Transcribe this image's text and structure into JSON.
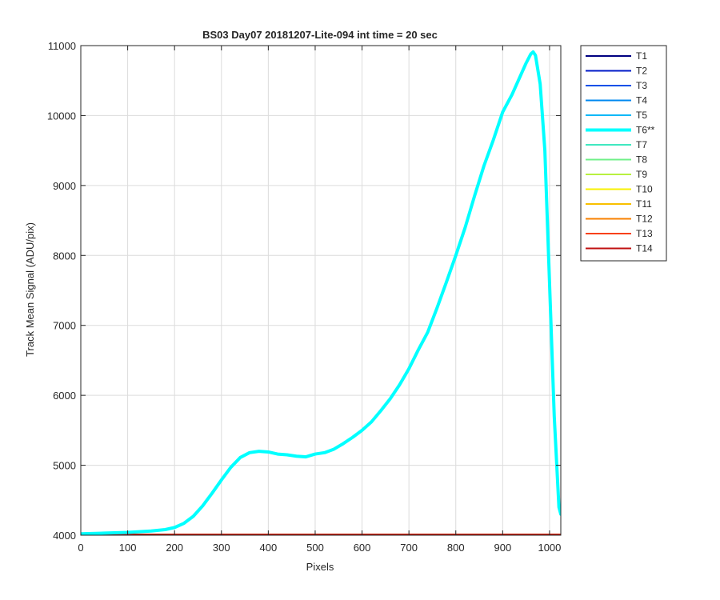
{
  "chart_data": {
    "type": "line",
    "title": "BS03 Day07 20181207-Lite-094 int time = 20 sec",
    "xlabel": "Pixels",
    "ylabel": "Track Mean Signal (ADU/pix)",
    "xlim": [
      0,
      1024
    ],
    "ylim": [
      4000,
      11000
    ],
    "xticks": [
      0,
      100,
      200,
      300,
      400,
      500,
      600,
      700,
      800,
      900,
      1000
    ],
    "yticks": [
      4000,
      5000,
      6000,
      7000,
      8000,
      9000,
      10000,
      11000
    ],
    "grid": true,
    "legend_position": "outside-right",
    "series": [
      {
        "name": "T1",
        "color": "#000080",
        "width": 1.5,
        "x": [
          0,
          1024
        ],
        "y": [
          4012,
          4012
        ]
      },
      {
        "name": "T2",
        "color": "#0018c8",
        "width": 1.5,
        "x": [
          0,
          1024
        ],
        "y": [
          4012,
          4012
        ]
      },
      {
        "name": "T3",
        "color": "#0050e8",
        "width": 1.5,
        "x": [
          0,
          1024
        ],
        "y": [
          4012,
          4012
        ]
      },
      {
        "name": "T4",
        "color": "#0088f0",
        "width": 1.5,
        "x": [
          0,
          1024
        ],
        "y": [
          4012,
          4012
        ]
      },
      {
        "name": "T5",
        "color": "#10b8f8",
        "width": 1.5,
        "x": [
          0,
          1024
        ],
        "y": [
          4012,
          4012
        ]
      },
      {
        "name": "T6**",
        "color": "#00ffff",
        "width": 4,
        "x": [
          0,
          50,
          100,
          150,
          180,
          200,
          220,
          240,
          260,
          280,
          300,
          320,
          340,
          360,
          380,
          400,
          420,
          440,
          460,
          480,
          500,
          520,
          540,
          560,
          580,
          600,
          620,
          640,
          660,
          680,
          700,
          720,
          740,
          760,
          780,
          800,
          820,
          840,
          860,
          880,
          900,
          920,
          940,
          950,
          960,
          965,
          970,
          980,
          990,
          1000,
          1010,
          1020,
          1024
        ],
        "y": [
          4020,
          4030,
          4040,
          4060,
          4080,
          4110,
          4170,
          4270,
          4420,
          4600,
          4790,
          4970,
          5110,
          5180,
          5200,
          5190,
          5160,
          5150,
          5130,
          5120,
          5160,
          5180,
          5230,
          5310,
          5400,
          5500,
          5620,
          5780,
          5950,
          6150,
          6380,
          6650,
          6900,
          7250,
          7620,
          8000,
          8400,
          8850,
          9280,
          9650,
          10050,
          10300,
          10600,
          10750,
          10880,
          10910,
          10860,
          10450,
          9500,
          7600,
          5700,
          4400,
          4300
        ]
      },
      {
        "name": "T7",
        "color": "#40e8c0",
        "width": 1.5,
        "x": [
          0,
          1024
        ],
        "y": [
          4012,
          4012
        ]
      },
      {
        "name": "T8",
        "color": "#70f088",
        "width": 1.5,
        "x": [
          0,
          1024
        ],
        "y": [
          4012,
          4012
        ]
      },
      {
        "name": "T9",
        "color": "#b8f040",
        "width": 1.5,
        "x": [
          0,
          1024
        ],
        "y": [
          4012,
          4012
        ]
      },
      {
        "name": "T10",
        "color": "#f8f000",
        "width": 1.5,
        "x": [
          0,
          1024
        ],
        "y": [
          4012,
          4012
        ]
      },
      {
        "name": "T11",
        "color": "#f8c000",
        "width": 1.5,
        "x": [
          0,
          1024
        ],
        "y": [
          4012,
          4012
        ]
      },
      {
        "name": "T12",
        "color": "#f88000",
        "width": 1.5,
        "x": [
          0,
          1024
        ],
        "y": [
          4012,
          4012
        ]
      },
      {
        "name": "T13",
        "color": "#f84010",
        "width": 1.5,
        "x": [
          0,
          1024
        ],
        "y": [
          4012,
          4012
        ]
      },
      {
        "name": "T14",
        "color": "#c01010",
        "width": 1.5,
        "x": [
          0,
          1024
        ],
        "y": [
          4012,
          4012
        ]
      }
    ]
  }
}
